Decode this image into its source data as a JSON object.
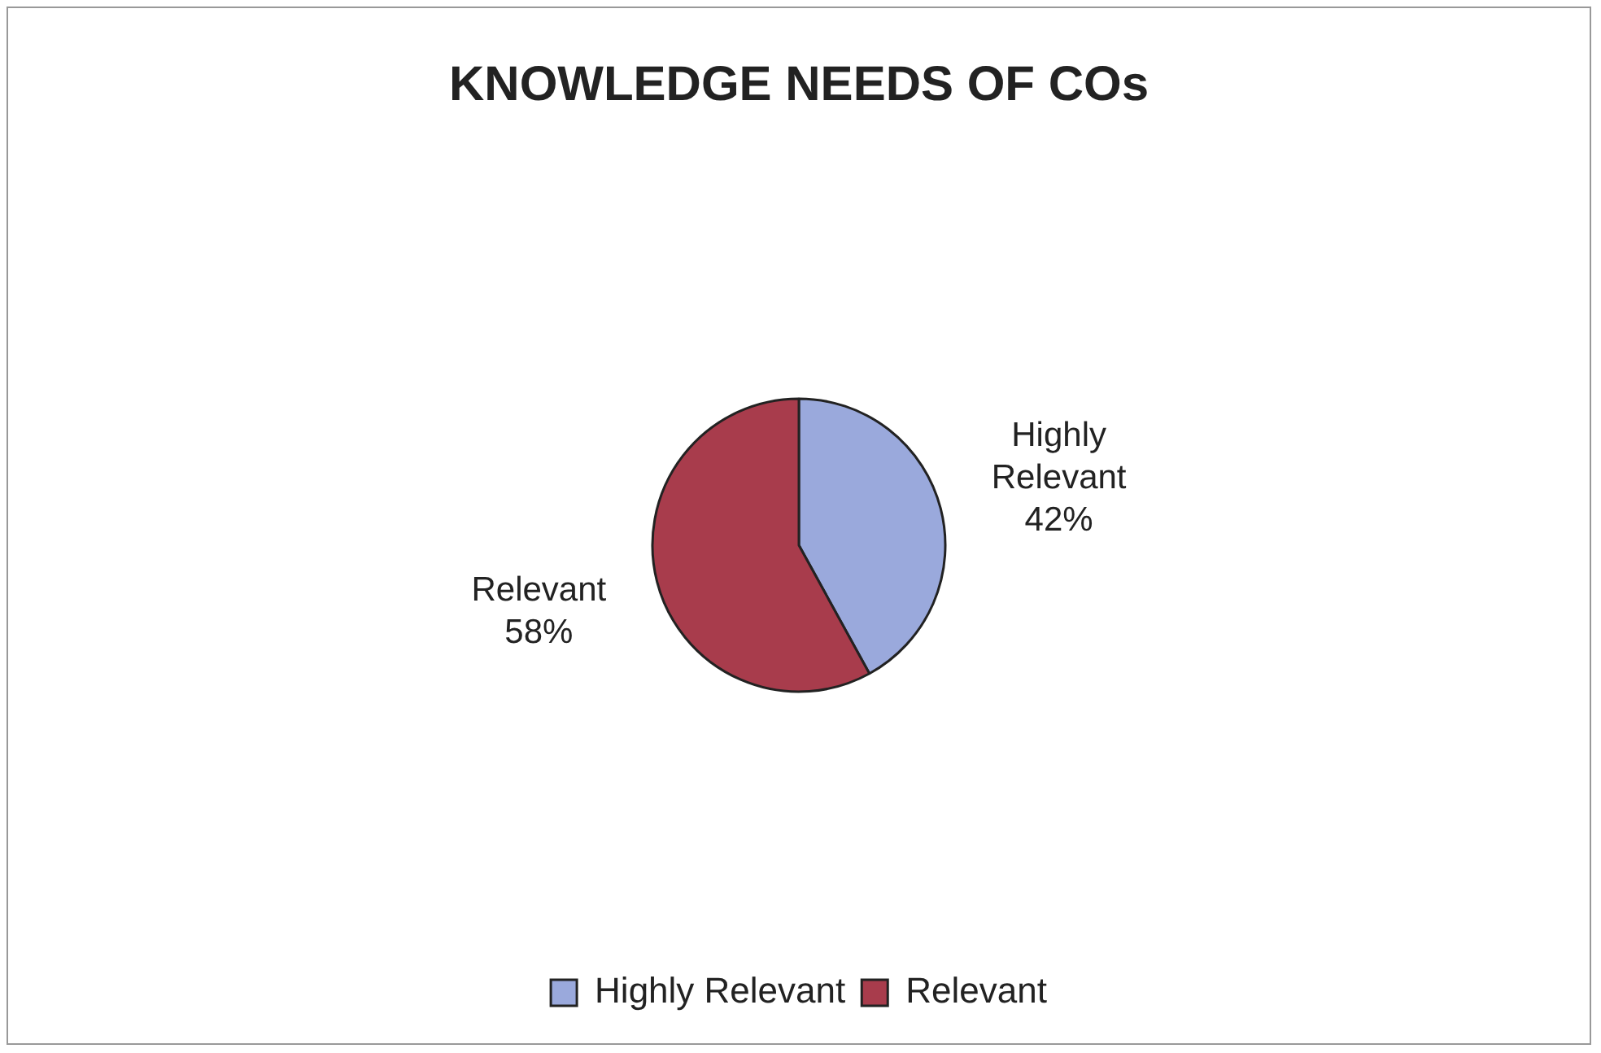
{
  "chart_data": {
    "type": "pie",
    "title": "KNOWLEDGE NEEDS OF COs",
    "categories": [
      "Highly Relevant",
      "Relevant"
    ],
    "values": [
      42,
      58
    ],
    "colors": [
      "#9aa9dc",
      "#a83c4c"
    ],
    "value_labels": [
      "42%",
      "58%"
    ],
    "legend": "bottom"
  }
}
